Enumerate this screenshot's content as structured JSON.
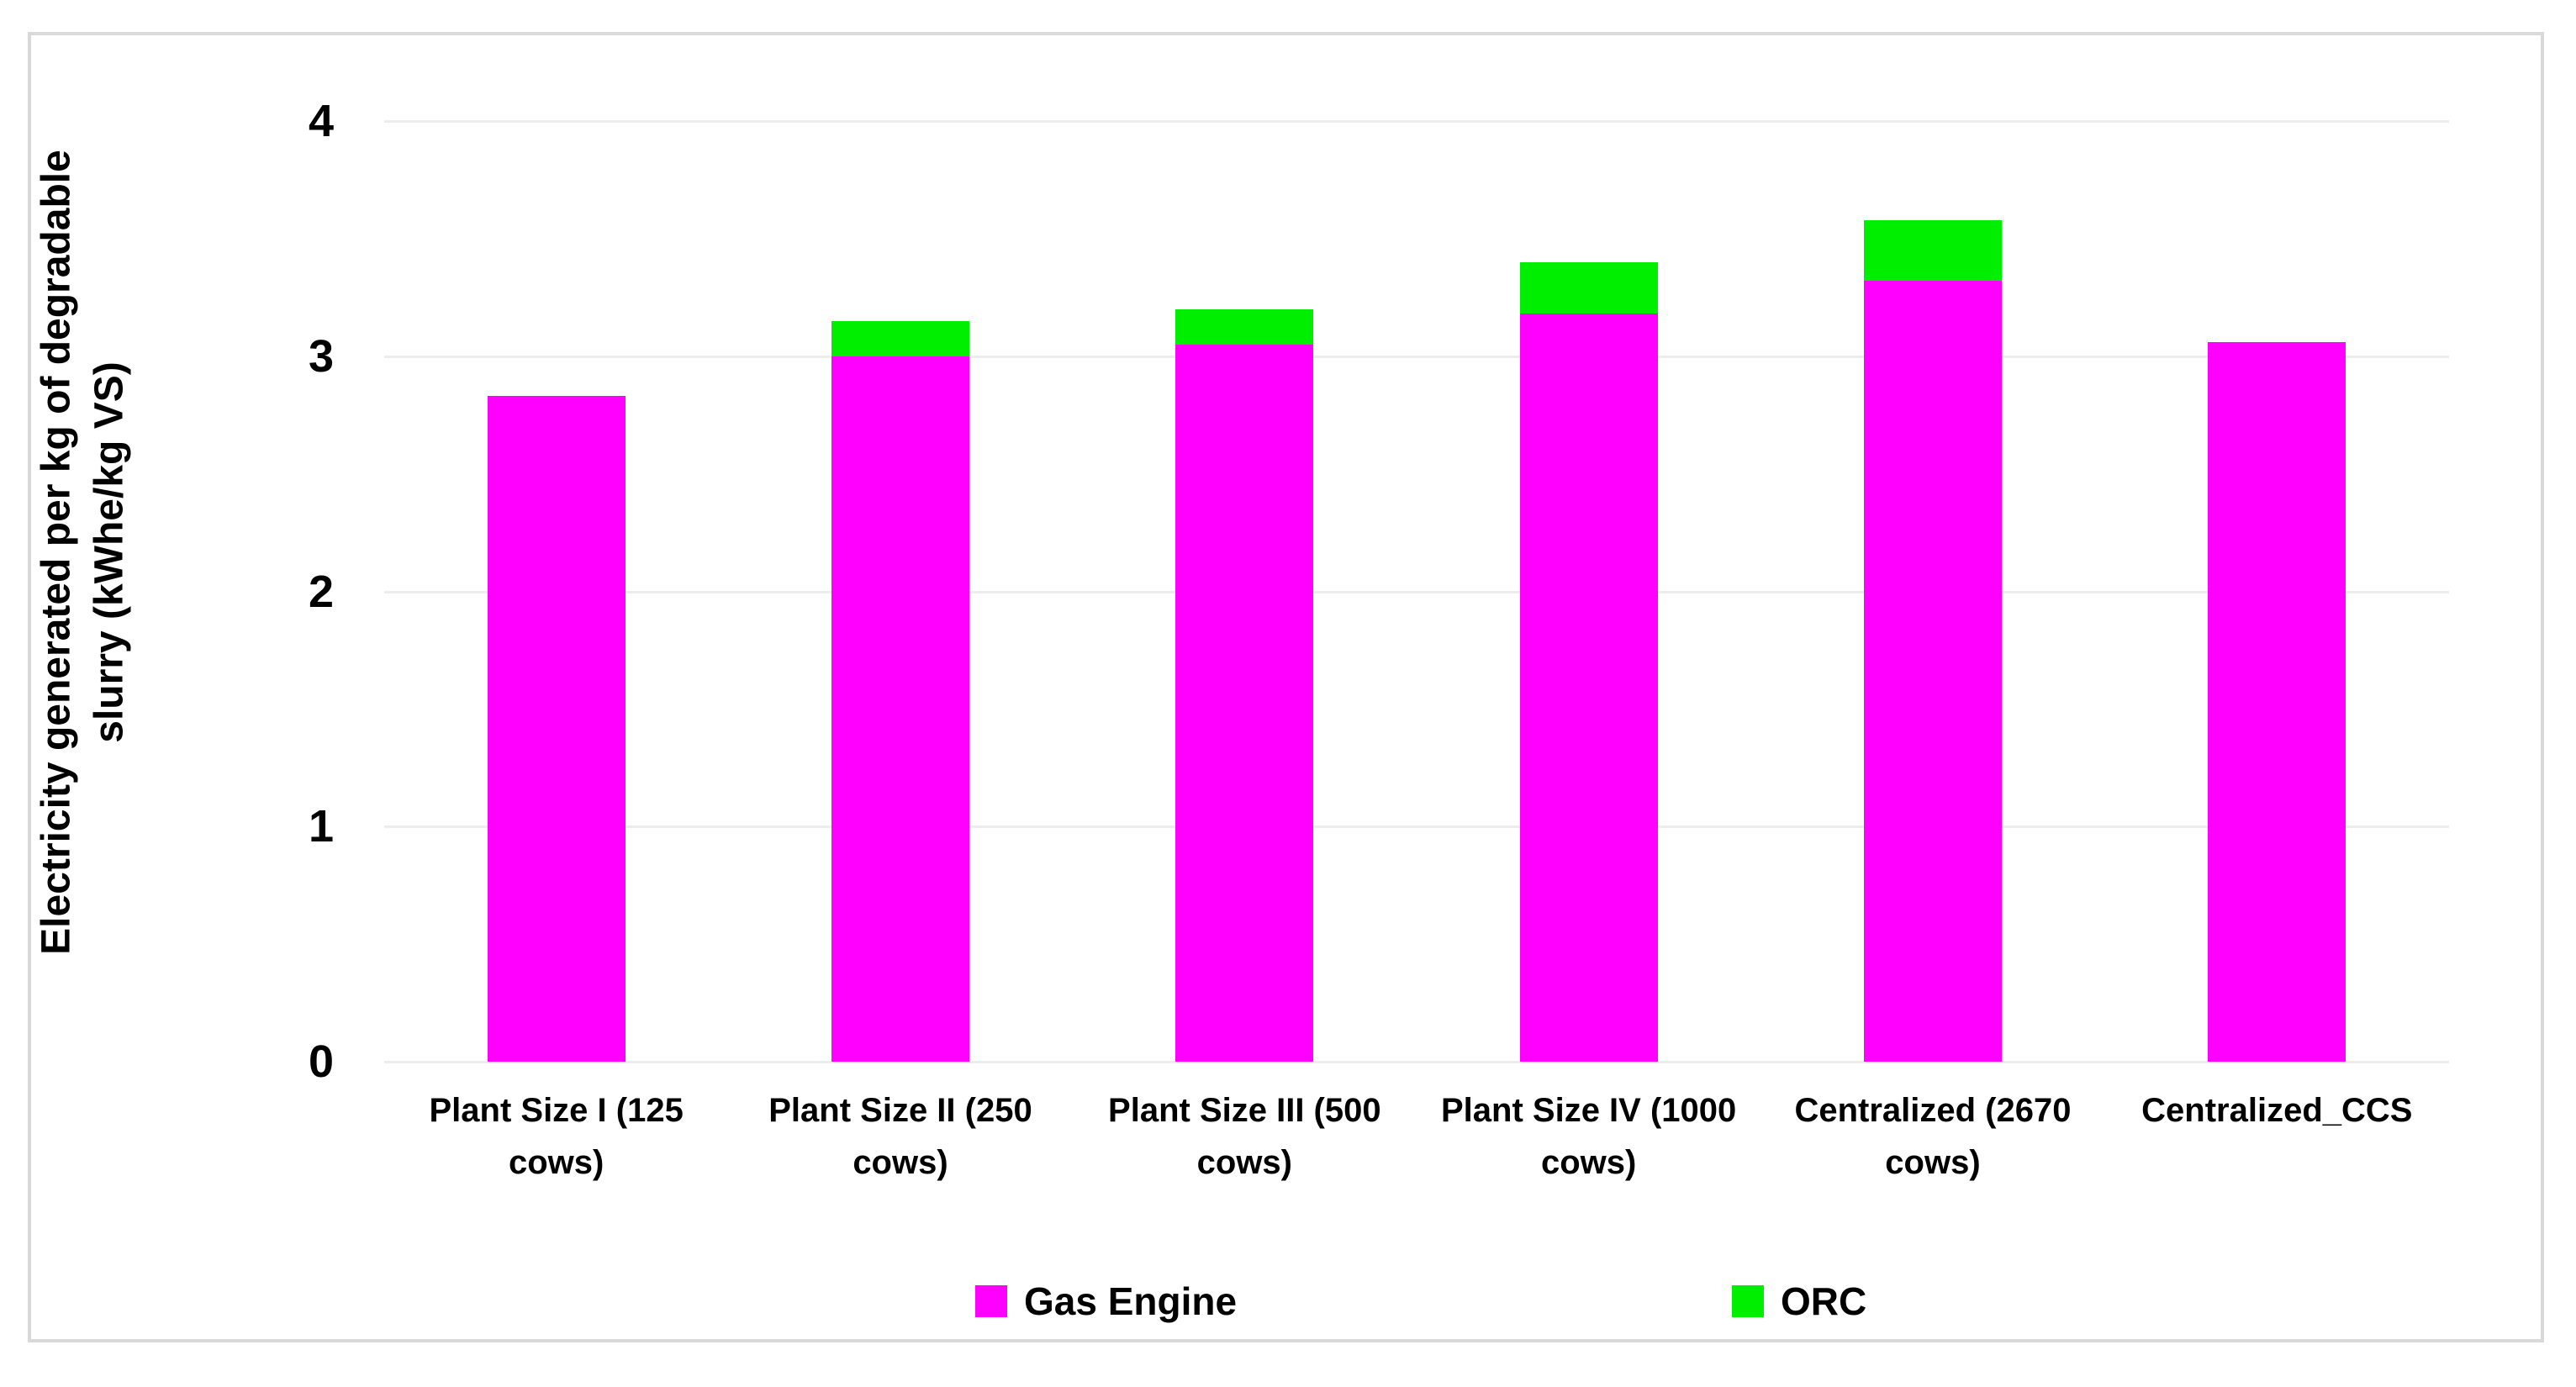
{
  "chart_data": {
    "type": "bar",
    "stacked": true,
    "categories": [
      "Plant Size I (125 cows)",
      "Plant Size II (250 cows)",
      "Plant Size III (500 cows)",
      "Plant Size IV (1000 cows)",
      "Centralized (2670 cows)",
      "Centralized_CCS"
    ],
    "series": [
      {
        "name": "Gas Engine",
        "color": "#FF00FF",
        "values": [
          2.83,
          3.0,
          3.05,
          3.18,
          3.32,
          3.06
        ]
      },
      {
        "name": "ORC",
        "color": "#00EE00",
        "values": [
          0,
          0.15,
          0.15,
          0.22,
          0.26,
          0
        ]
      }
    ],
    "totals": [
      2.83,
      3.15,
      3.2,
      3.4,
      3.58,
      3.06
    ],
    "ylabel_line1": "Electricity generated per kg of degradable",
    "ylabel_line2": "slurry (kWhe/kg VS)",
    "xlabel": "",
    "title": "",
    "ylim": [
      0,
      4
    ],
    "yticks": [
      0,
      1,
      2,
      3,
      4
    ],
    "grid": true,
    "gridline_color": "#ededed",
    "legend_position": "bottom",
    "panel_border_color": "#d9d9d9"
  }
}
